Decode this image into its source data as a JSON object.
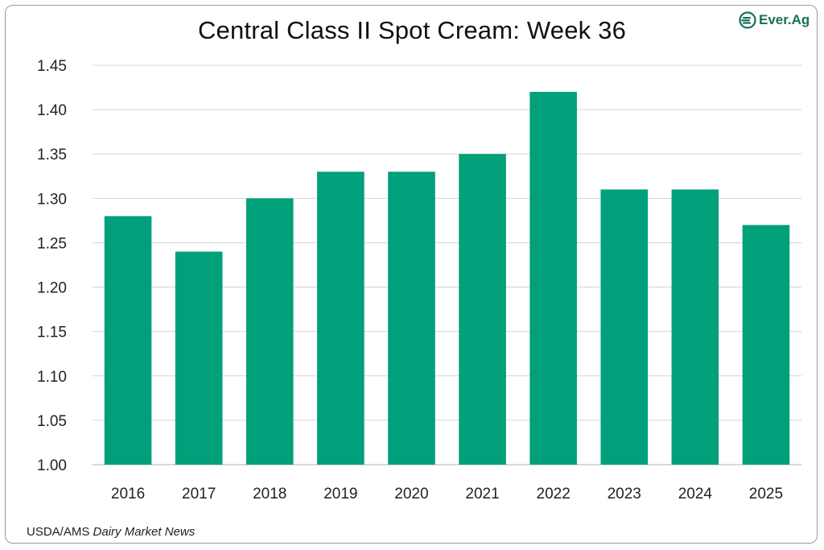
{
  "title": "Central Class II Spot Cream: Week 36",
  "logo": {
    "text": "Ever.Ag",
    "icon": "ever-ag-logo-icon",
    "color": "#16705a"
  },
  "source": {
    "prefix": "USDA/AMS",
    "publication": "Dairy Market News"
  },
  "chart_data": {
    "type": "bar",
    "categories": [
      "2016",
      "2017",
      "2018",
      "2019",
      "2020",
      "2021",
      "2022",
      "2023",
      "2024",
      "2025"
    ],
    "values": [
      1.28,
      1.24,
      1.3,
      1.33,
      1.33,
      1.35,
      1.42,
      1.31,
      1.31,
      1.27
    ],
    "ylim": [
      1.0,
      1.45
    ],
    "yticks": [
      "1.00",
      "1.05",
      "1.10",
      "1.15",
      "1.20",
      "1.25",
      "1.30",
      "1.35",
      "1.40",
      "1.45"
    ],
    "grid": true,
    "legend": "none",
    "bar_color": "#00a07b"
  }
}
